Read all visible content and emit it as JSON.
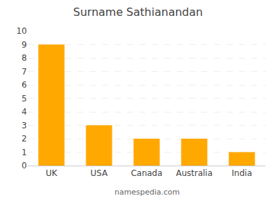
{
  "chart_data": {
    "type": "bar",
    "title": "Surname Sathianandan",
    "categories": [
      "UK",
      "USA",
      "Canada",
      "Australia",
      "India"
    ],
    "values": [
      9,
      3,
      2,
      2,
      1
    ],
    "color": "#FFA800",
    "ylim": [
      0,
      10
    ],
    "yticks": [
      0,
      1,
      2,
      3,
      4,
      5,
      6,
      7,
      8,
      9,
      10
    ],
    "grid": true,
    "annotations": [
      "namespedia.com"
    ]
  }
}
